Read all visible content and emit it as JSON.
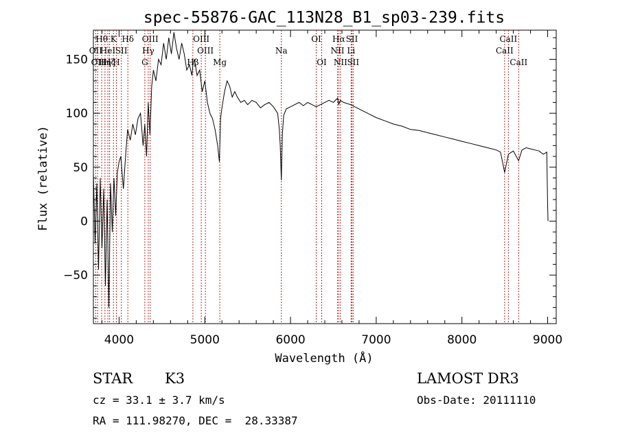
{
  "chart_data": {
    "type": "line",
    "title": "spec-55876-GAC_113N28_B1_sp03-239.fits",
    "xlabel": "Wavelength (Å)",
    "ylabel": "Flux (relative)",
    "xlim": [
      3700,
      9100
    ],
    "ylim": [
      -95,
      177
    ],
    "x_ticks": [
      4000,
      5000,
      6000,
      7000,
      8000,
      9000
    ],
    "y_ticks": [
      -50,
      0,
      50,
      100,
      150
    ],
    "grid": false,
    "line_color": "#000000",
    "marker_color": "#b22222",
    "series": [
      {
        "name": "flux",
        "x": [
          3700,
          3720,
          3740,
          3760,
          3780,
          3800,
          3820,
          3840,
          3860,
          3880,
          3900,
          3920,
          3940,
          3960,
          3980,
          4000,
          4020,
          4050,
          4080,
          4100,
          4130,
          4160,
          4190,
          4220,
          4250,
          4280,
          4300,
          4320,
          4340,
          4360,
          4380,
          4400,
          4430,
          4460,
          4490,
          4520,
          4550,
          4580,
          4610,
          4640,
          4670,
          4700,
          4730,
          4760,
          4790,
          4820,
          4850,
          4861,
          4880,
          4910,
          4940,
          4970,
          5000,
          5030,
          5060,
          5090,
          5120,
          5150,
          5170,
          5184,
          5200,
          5230,
          5260,
          5290,
          5320,
          5350,
          5380,
          5420,
          5460,
          5500,
          5550,
          5600,
          5650,
          5700,
          5750,
          5800,
          5850,
          5870,
          5880,
          5893,
          5905,
          5920,
          5950,
          6000,
          6050,
          6100,
          6150,
          6200,
          6250,
          6300,
          6350,
          6400,
          6450,
          6500,
          6550,
          6563,
          6580,
          6620,
          6700,
          6800,
          6900,
          7000,
          7100,
          7200,
          7300,
          7400,
          7500,
          7600,
          7700,
          7800,
          7900,
          8000,
          8100,
          8200,
          8300,
          8400,
          8450,
          8498,
          8542,
          8560,
          8600,
          8662,
          8700,
          8750,
          8800,
          8850,
          8900,
          8950,
          8990,
          9000,
          9005
        ],
        "values": [
          45,
          -20,
          35,
          -45,
          40,
          -25,
          30,
          -60,
          20,
          -80,
          35,
          -10,
          40,
          5,
          45,
          55,
          60,
          30,
          65,
          85,
          75,
          90,
          80,
          95,
          100,
          70,
          90,
          60,
          110,
          80,
          125,
          140,
          130,
          150,
          145,
          165,
          150,
          170,
          155,
          175,
          160,
          150,
          165,
          155,
          140,
          145,
          135,
          145,
          150,
          135,
          140,
          120,
          130,
          110,
          100,
          95,
          85,
          70,
          55,
          95,
          105,
          120,
          130,
          125,
          115,
          120,
          115,
          110,
          112,
          108,
          112,
          110,
          105,
          108,
          110,
          106,
          100,
          85,
          70,
          38,
          80,
          98,
          104,
          106,
          108,
          110,
          107,
          110,
          108,
          106,
          108,
          110,
          112,
          110,
          114,
          108,
          112,
          110,
          108,
          104,
          100,
          96,
          93,
          90,
          88,
          85,
          84,
          82,
          80,
          78,
          76,
          74,
          72,
          70,
          68,
          66,
          64,
          45,
          62,
          63,
          65,
          56,
          66,
          68,
          67,
          66,
          65,
          62,
          64,
          15,
          0
        ]
      }
    ],
    "lines": [
      {
        "wavelength": 3727,
        "label": "OII",
        "row": 2
      },
      {
        "wavelength": 3750,
        "label": "OII",
        "row": 3
      },
      {
        "wavelength": 3797,
        "label": "Hθ",
        "row": 1
      },
      {
        "wavelength": 3835,
        "label": "Hη",
        "row": 3
      },
      {
        "wavelength": 3869,
        "label": "HeI",
        "row": 2
      },
      {
        "wavelength": 3889,
        "label": "Hζ",
        "row": 3
      },
      {
        "wavelength": 3934,
        "label": "K",
        "row": 1
      },
      {
        "wavelength": 3968,
        "label": "H",
        "row": 3
      },
      {
        "wavelength": 4026,
        "label": "SII",
        "row": 2
      },
      {
        "wavelength": 4102,
        "label": "Hδ",
        "row": 1
      },
      {
        "wavelength": 4300,
        "label": "G",
        "row": 3
      },
      {
        "wavelength": 4340,
        "label": "Hγ",
        "row": 2
      },
      {
        "wavelength": 4363,
        "label": "OIII",
        "row": 1
      },
      {
        "wavelength": 4861,
        "label": "Hβ",
        "row": 3
      },
      {
        "wavelength": 4959,
        "label": "OIII",
        "row": 1
      },
      {
        "wavelength": 5007,
        "label": "OIII",
        "row": 2
      },
      {
        "wavelength": 5175,
        "label": "Mg",
        "row": 3
      },
      {
        "wavelength": 5893,
        "label": "Na",
        "row": 2
      },
      {
        "wavelength": 6300,
        "label": "OI",
        "row": 1
      },
      {
        "wavelength": 6364,
        "label": "OI",
        "row": 3
      },
      {
        "wavelength": 6548,
        "label": "NII",
        "row": 2
      },
      {
        "wavelength": 6563,
        "label": "Hα",
        "row": 1
      },
      {
        "wavelength": 6583,
        "label": "NII",
        "row": 3
      },
      {
        "wavelength": 6707,
        "label": "Li",
        "row": 2
      },
      {
        "wavelength": 6716,
        "label": "SII",
        "row": 1
      },
      {
        "wavelength": 6731,
        "label": "SII",
        "row": 3
      },
      {
        "wavelength": 8498,
        "label": "CaII",
        "row": 2
      },
      {
        "wavelength": 8542,
        "label": "CaII",
        "row": 1
      },
      {
        "wavelength": 8662,
        "label": "CaII",
        "row": 3
      }
    ]
  },
  "info": {
    "object_class": "STAR",
    "subclass": "K3",
    "survey": "LAMOST DR3",
    "redshift": "cz = 33.1 ± 3.7 km/s",
    "obs_date": "Obs-Date: 20111110",
    "coordinates": "RA = 111.98270, DEC =  28.33387"
  }
}
